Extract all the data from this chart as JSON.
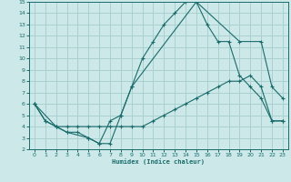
{
  "xlabel": "Humidex (Indice chaleur)",
  "bg_color": "#cce8e8",
  "grid_color": "#aad0d0",
  "line_color": "#1a6b6b",
  "xlim": [
    -0.5,
    23.5
  ],
  "ylim": [
    2,
    15
  ],
  "xticks": [
    0,
    1,
    2,
    3,
    4,
    5,
    6,
    7,
    8,
    9,
    10,
    11,
    12,
    13,
    14,
    15,
    16,
    17,
    18,
    19,
    20,
    21,
    22,
    23
  ],
  "yticks": [
    2,
    3,
    4,
    5,
    6,
    7,
    8,
    9,
    10,
    11,
    12,
    13,
    14,
    15
  ],
  "line1_x": [
    0,
    1,
    2,
    3,
    4,
    5,
    6,
    7,
    8,
    9,
    10,
    11,
    12,
    13,
    14,
    15,
    16,
    17,
    18,
    19,
    20,
    21,
    22,
    23
  ],
  "line1_y": [
    6,
    4.5,
    4,
    3.5,
    3.5,
    3,
    2.5,
    4.5,
    5,
    7.5,
    10,
    11.5,
    13,
    14,
    15,
    15,
    13,
    11.5,
    11.5,
    8.5,
    7.5,
    6.5,
    4.5,
    4.5
  ],
  "line2_x": [
    0,
    1,
    2,
    3,
    4,
    5,
    6,
    7,
    8,
    9,
    10,
    11,
    12,
    13,
    14,
    15,
    16,
    17,
    18,
    19,
    20,
    21,
    22,
    23
  ],
  "line2_y": [
    6,
    4.5,
    4,
    4,
    4,
    4,
    4,
    4,
    4,
    4,
    4,
    4.5,
    5,
    5.5,
    6,
    6.5,
    7,
    7.5,
    8,
    8,
    8.5,
    7.5,
    4.5,
    4.5
  ],
  "line3_x": [
    0,
    2,
    3,
    5,
    6,
    7,
    8,
    9,
    15,
    19,
    21,
    22,
    23
  ],
  "line3_y": [
    6,
    4,
    3.5,
    3,
    2.5,
    2.5,
    5,
    7.5,
    15,
    11.5,
    11.5,
    7.5,
    6.5
  ]
}
